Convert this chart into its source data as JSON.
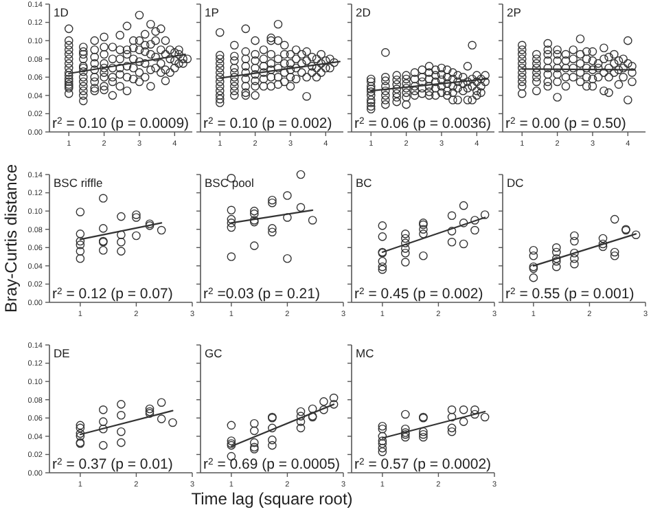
{
  "chart_data": [
    {
      "type": "scatter",
      "title": "1D",
      "ylabel": null,
      "marker": "circle",
      "xlim": [
        0.45,
        4.5
      ],
      "xticks": [
        1,
        2,
        3,
        4
      ],
      "ylim": [
        0,
        0.14
      ],
      "yticks": [
        {
          "value": 0,
          "label": "0.00"
        },
        {
          "value": 0.02,
          "label": "0.02"
        },
        {
          "value": 0.04,
          "label": "0.04"
        },
        {
          "value": 0.06,
          "label": "0.06"
        },
        {
          "value": 0.08,
          "label": "0.08"
        },
        {
          "value": 0.1,
          "label": "0.10"
        },
        {
          "value": 0.12,
          "label": "0.12"
        },
        {
          "value": 0.14,
          "label": "0.14"
        }
      ],
      "annotations": [
        "r$^{2}$ = 0.10 (p = 0.0009)"
      ],
      "series": [
        {
          "type": "scatter",
          "color": "#333333",
          "x": [
            1,
            1,
            1,
            1,
            1,
            1,
            1,
            1,
            1,
            1,
            1,
            1,
            1,
            1,
            1,
            1,
            1.41,
            1.41,
            1.41,
            1.41,
            1.41,
            1.41,
            1.41,
            1.41,
            1.41,
            1.41,
            1.41,
            1.41,
            1.41,
            1.73,
            1.73,
            1.73,
            1.73,
            1.73,
            1.73,
            1.73,
            1.73,
            1.73,
            2,
            2,
            2,
            2,
            2,
            2,
            2,
            2,
            2,
            2.24,
            2.24,
            2.24,
            2.24,
            2.24,
            2.24,
            2.45,
            2.45,
            2.45,
            2.45,
            2.45,
            2.45,
            2.65,
            2.65,
            2.65,
            2.65,
            2.65,
            2.65,
            2.83,
            2.83,
            2.83,
            2.83,
            2.83,
            3,
            3,
            3,
            3,
            3,
            3,
            3.16,
            3.16,
            3.16,
            3.16,
            3.16,
            3.32,
            3.32,
            3.32,
            3.32,
            3.32,
            3.46,
            3.46,
            3.46,
            3.46,
            3.61,
            3.61,
            3.61,
            3.61,
            3.74,
            3.74,
            3.74,
            3.74,
            3.87,
            3.87,
            3.87,
            4,
            4,
            4,
            4.12,
            4.12,
            4.12,
            4.24,
            4.24,
            4.36
          ],
          "values": [
            0.113,
            0.1,
            0.095,
            0.09,
            0.085,
            0.08,
            0.075,
            0.07,
            0.065,
            0.062,
            0.058,
            0.055,
            0.052,
            0.05,
            0.048,
            0.042,
            0.093,
            0.088,
            0.085,
            0.08,
            0.072,
            0.07,
            0.066,
            0.06,
            0.055,
            0.05,
            0.045,
            0.04,
            0.034,
            0.1,
            0.09,
            0.082,
            0.075,
            0.068,
            0.06,
            0.055,
            0.048,
            0.045,
            0.104,
            0.093,
            0.085,
            0.075,
            0.07,
            0.065,
            0.06,
            0.05,
            0.046,
            0.093,
            0.08,
            0.07,
            0.06,
            0.055,
            0.04,
            0.106,
            0.09,
            0.08,
            0.07,
            0.063,
            0.05,
            0.116,
            0.09,
            0.085,
            0.072,
            0.06,
            0.045,
            0.1,
            0.092,
            0.08,
            0.07,
            0.058,
            0.128,
            0.1,
            0.09,
            0.077,
            0.065,
            0.055,
            0.107,
            0.095,
            0.088,
            0.075,
            0.06,
            0.118,
            0.096,
            0.085,
            0.068,
            0.05,
            0.11,
            0.1,
            0.082,
            0.07,
            0.113,
            0.09,
            0.075,
            0.065,
            0.1,
            0.085,
            0.068,
            0.056,
            0.09,
            0.08,
            0.065,
            0.087,
            0.078,
            0.07,
            0.09,
            0.085,
            0.075,
            0.08,
            0.075,
            0.08
          ]
        },
        {
          "type": "line",
          "color": "#333333",
          "x": [
            1,
            4.3
          ],
          "values": [
            0.064,
            0.085
          ],
          "marker": "none"
        }
      ]
    },
    {
      "type": "scatter",
      "title": "1P",
      "marker": "circle",
      "tick_labels": "x",
      "xlim": [
        0.45,
        4.5
      ],
      "xticks": [
        1,
        2,
        3,
        4
      ],
      "ylim": [
        0,
        0.14
      ],
      "yticks": [
        0,
        0.02,
        0.04,
        0.06,
        0.08,
        0.1,
        0.12,
        0.14
      ],
      "annotations": [
        "r$^{2}$ = 0.10 (p = 0.002)"
      ],
      "series": [
        {
          "type": "scatter",
          "color": "#333333",
          "x": [
            1,
            1,
            1,
            1,
            1,
            1,
            1,
            1,
            1,
            1,
            1,
            1,
            1,
            1.41,
            1.41,
            1.41,
            1.41,
            1.41,
            1.41,
            1.41,
            1.41,
            1.41,
            1.41,
            1.73,
            1.73,
            1.73,
            1.73,
            1.73,
            1.73,
            1.73,
            1.73,
            1.73,
            2,
            2,
            2,
            2,
            2,
            2,
            2,
            2,
            2.24,
            2.24,
            2.24,
            2.24,
            2.24,
            2.24,
            2.45,
            2.45,
            2.45,
            2.45,
            2.45,
            2.45,
            2.45,
            2.65,
            2.65,
            2.65,
            2.65,
            2.65,
            2.65,
            2.83,
            2.83,
            2.83,
            2.83,
            2.83,
            3,
            3,
            3,
            3,
            3,
            3.16,
            3.16,
            3.16,
            3.16,
            3.32,
            3.32,
            3.32,
            3.46,
            3.46,
            3.46,
            3.46,
            3.61,
            3.61,
            3.61,
            3.74,
            3.74,
            3.74,
            3.87,
            3.87,
            3.87,
            4,
            4,
            4.12,
            4.12,
            4.24
          ],
          "values": [
            0.109,
            0.084,
            0.08,
            0.075,
            0.07,
            0.065,
            0.06,
            0.055,
            0.05,
            0.045,
            0.04,
            0.036,
            0.032,
            0.095,
            0.083,
            0.078,
            0.07,
            0.065,
            0.06,
            0.055,
            0.05,
            0.045,
            0.04,
            0.113,
            0.088,
            0.08,
            0.072,
            0.065,
            0.058,
            0.05,
            0.043,
            0.04,
            0.1,
            0.085,
            0.078,
            0.07,
            0.063,
            0.056,
            0.05,
            0.04,
            0.09,
            0.08,
            0.072,
            0.065,
            0.058,
            0.05,
            0.103,
            0.1,
            0.085,
            0.075,
            0.068,
            0.06,
            0.05,
            0.118,
            0.1,
            0.08,
            0.07,
            0.06,
            0.052,
            0.095,
            0.085,
            0.075,
            0.065,
            0.055,
            0.085,
            0.075,
            0.068,
            0.06,
            0.05,
            0.09,
            0.08,
            0.07,
            0.058,
            0.085,
            0.075,
            0.065,
            0.088,
            0.078,
            0.06,
            0.039,
            0.082,
            0.072,
            0.065,
            0.08,
            0.07,
            0.06,
            0.085,
            0.075,
            0.065,
            0.078,
            0.07,
            0.08,
            0.07,
            0.076
          ]
        },
        {
          "type": "line",
          "color": "#333333",
          "x": [
            1,
            4.4
          ],
          "values": [
            0.059,
            0.077
          ],
          "marker": "none"
        }
      ]
    },
    {
      "type": "scatter",
      "title": "2D",
      "marker": "circle",
      "tick_labels": "x",
      "xlim": [
        0.45,
        4.5
      ],
      "xticks": [
        1,
        2,
        3,
        4
      ],
      "ylim": [
        0,
        0.14
      ],
      "yticks": [
        0,
        0.02,
        0.04,
        0.06,
        0.08,
        0.1,
        0.12,
        0.14
      ],
      "annotations": [
        "r$^{2}$ = 0.06 (p = 0.0036)"
      ],
      "series": [
        {
          "type": "scatter",
          "color": "#333333",
          "x": [
            1,
            1,
            1,
            1,
            1,
            1,
            1,
            1,
            1,
            1,
            1.41,
            1.41,
            1.41,
            1.41,
            1.41,
            1.41,
            1.41,
            1.41,
            1.73,
            1.73,
            1.73,
            1.73,
            1.73,
            1.73,
            1.73,
            2,
            2,
            2,
            2,
            2,
            2,
            2,
            2.24,
            2.24,
            2.24,
            2.24,
            2.24,
            2.45,
            2.45,
            2.45,
            2.45,
            2.45,
            2.65,
            2.65,
            2.65,
            2.65,
            2.65,
            2.65,
            2.83,
            2.83,
            2.83,
            2.83,
            2.83,
            3,
            3,
            3,
            3,
            3,
            3.16,
            3.16,
            3.16,
            3.16,
            3.16,
            3.32,
            3.32,
            3.32,
            3.32,
            3.32,
            3.46,
            3.46,
            3.46,
            3.46,
            3.61,
            3.61,
            3.61,
            3.74,
            3.74,
            3.74,
            3.74,
            3.87,
            3.87,
            3.87,
            3.87,
            4,
            4,
            4,
            4,
            4.12,
            4.12,
            4.12,
            4.24,
            4.24
          ],
          "values": [
            0.058,
            0.055,
            0.05,
            0.047,
            0.044,
            0.04,
            0.035,
            0.032,
            0.028,
            0.025,
            0.087,
            0.06,
            0.056,
            0.05,
            0.045,
            0.04,
            0.035,
            0.03,
            0.062,
            0.057,
            0.052,
            0.047,
            0.042,
            0.038,
            0.033,
            0.062,
            0.058,
            0.053,
            0.048,
            0.043,
            0.038,
            0.03,
            0.065,
            0.058,
            0.05,
            0.045,
            0.04,
            0.068,
            0.06,
            0.055,
            0.048,
            0.042,
            0.072,
            0.065,
            0.058,
            0.05,
            0.044,
            0.04,
            0.068,
            0.062,
            0.055,
            0.048,
            0.04,
            0.07,
            0.063,
            0.057,
            0.05,
            0.043,
            0.068,
            0.06,
            0.053,
            0.045,
            0.04,
            0.065,
            0.058,
            0.05,
            0.043,
            0.035,
            0.062,
            0.055,
            0.048,
            0.035,
            0.06,
            0.053,
            0.045,
            0.072,
            0.055,
            0.048,
            0.035,
            0.095,
            0.058,
            0.05,
            0.035,
            0.062,
            0.055,
            0.045,
            0.04,
            0.058,
            0.05,
            0.043,
            0.062,
            0.055
          ]
        },
        {
          "type": "line",
          "color": "#333333",
          "x": [
            1,
            4.3
          ],
          "values": [
            0.045,
            0.058
          ],
          "marker": "none"
        }
      ]
    },
    {
      "type": "scatter",
      "title": "2P",
      "marker": "circle",
      "tick_labels": "x",
      "xlim": [
        0.45,
        4.5
      ],
      "xticks": [
        1,
        2,
        3,
        4
      ],
      "ylim": [
        0,
        0.14
      ],
      "yticks": [
        0,
        0.02,
        0.04,
        0.06,
        0.08,
        0.1,
        0.12,
        0.14
      ],
      "annotations": [
        "r$^{2}$ = 0.00 (p = 0.50)"
      ],
      "series": [
        {
          "type": "scatter",
          "color": "#333333",
          "x": [
            1,
            1,
            1,
            1,
            1,
            1,
            1,
            1,
            1,
            1,
            1,
            1.41,
            1.41,
            1.41,
            1.41,
            1.41,
            1.41,
            1.41,
            1.41,
            1.73,
            1.73,
            1.73,
            1.73,
            1.73,
            1.73,
            1.73,
            1.73,
            2,
            2,
            2,
            2,
            2,
            2,
            2,
            2.24,
            2.24,
            2.24,
            2.24,
            2.24,
            2.45,
            2.45,
            2.45,
            2.45,
            2.65,
            2.65,
            2.65,
            2.65,
            2.65,
            2.83,
            2.83,
            2.83,
            2.83,
            2.83,
            3,
            3,
            3,
            3,
            3,
            3.16,
            3.16,
            3.16,
            3.32,
            3.32,
            3.32,
            3.32,
            3.46,
            3.46,
            3.46,
            3.46,
            3.61,
            3.61,
            3.61,
            3.74,
            3.74,
            3.74,
            3.87,
            3.87,
            3.87,
            4,
            4,
            4,
            4.12,
            4.12,
            4.12
          ],
          "values": [
            0.095,
            0.09,
            0.085,
            0.08,
            0.075,
            0.07,
            0.065,
            0.06,
            0.055,
            0.05,
            0.042,
            0.085,
            0.08,
            0.075,
            0.07,
            0.065,
            0.06,
            0.055,
            0.045,
            0.097,
            0.09,
            0.085,
            0.078,
            0.07,
            0.063,
            0.055,
            0.05,
            0.09,
            0.085,
            0.078,
            0.07,
            0.063,
            0.055,
            0.038,
            0.085,
            0.078,
            0.07,
            0.06,
            0.05,
            0.09,
            0.08,
            0.07,
            0.06,
            0.102,
            0.085,
            0.075,
            0.065,
            0.055,
            0.088,
            0.08,
            0.07,
            0.06,
            0.05,
            0.088,
            0.078,
            0.068,
            0.058,
            0.05,
            0.075,
            0.07,
            0.06,
            0.092,
            0.08,
            0.065,
            0.045,
            0.082,
            0.07,
            0.06,
            0.043,
            0.085,
            0.075,
            0.065,
            0.078,
            0.068,
            0.052,
            0.08,
            0.07,
            0.06,
            0.1,
            0.075,
            0.035,
            0.072,
            0.065,
            0.055
          ]
        },
        {
          "type": "line",
          "color": "#333333",
          "x": [
            1,
            4.2
          ],
          "values": [
            0.069,
            0.068
          ],
          "marker": "none"
        }
      ]
    },
    {
      "type": "scatter",
      "title": "BSC riffle",
      "ylabel": "Bray-Curtis distance",
      "marker": "circle",
      "xlim": [
        0.45,
        3
      ],
      "xticks": [
        1,
        2,
        3
      ],
      "ylim": [
        0,
        0.14
      ],
      "yticks": [
        {
          "value": 0,
          "label": "0.00"
        },
        {
          "value": 0.02,
          "label": "0.02"
        },
        {
          "value": 0.04,
          "label": "0.04"
        },
        {
          "value": 0.06,
          "label": "0.06"
        },
        {
          "value": 0.08,
          "label": "0.08"
        },
        {
          "value": 0.1,
          "label": "0.10"
        },
        {
          "value": 0.12,
          "label": "0.12"
        },
        {
          "value": 0.14,
          "label": "0.14"
        }
      ],
      "annotations": [
        "r$^{2}$ = 0.12 (p = 0.07)"
      ],
      "series": [
        {
          "type": "scatter",
          "color": "#333333",
          "x": [
            1,
            1,
            1,
            1,
            1,
            1,
            1.41,
            1.41,
            1.41,
            1.41,
            1.41,
            1.73,
            1.73,
            1.73,
            1.73,
            2,
            2,
            2,
            2.24,
            2.24,
            2.45
          ],
          "values": [
            0.099,
            0.075,
            0.067,
            0.063,
            0.056,
            0.048,
            0.114,
            0.081,
            0.067,
            0.066,
            0.057,
            0.094,
            0.074,
            0.066,
            0.056,
            0.096,
            0.093,
            0.073,
            0.086,
            0.084,
            0.079
          ]
        },
        {
          "type": "line",
          "color": "#333333",
          "x": [
            1,
            2.45
          ],
          "values": [
            0.069,
            0.087
          ],
          "marker": "none"
        }
      ]
    },
    {
      "type": "scatter",
      "title": "BSC pool",
      "marker": "circle",
      "tick_labels": "x",
      "xlim": [
        0.45,
        3
      ],
      "xticks": [
        1,
        2,
        3
      ],
      "ylim": [
        0,
        0.14
      ],
      "yticks": [
        0,
        0.02,
        0.04,
        0.06,
        0.08,
        0.1,
        0.12,
        0.14
      ],
      "annotations": [
        "r$^{2}$ =0.03 (p = 0.21)"
      ],
      "series": [
        {
          "type": "scatter",
          "color": "#333333",
          "x": [
            1,
            1,
            1,
            1,
            1,
            1,
            1.41,
            1.41,
            1.41,
            1.41,
            1.41,
            1.73,
            1.73,
            1.73,
            1.73,
            2,
            2,
            2,
            2.24,
            2.24,
            2.45
          ],
          "values": [
            0.136,
            0.101,
            0.091,
            0.087,
            0.082,
            0.05,
            0.1,
            0.097,
            0.09,
            0.088,
            0.062,
            0.112,
            0.109,
            0.081,
            0.077,
            0.117,
            0.093,
            0.048,
            0.14,
            0.104,
            0.09
          ]
        },
        {
          "type": "line",
          "color": "#333333",
          "x": [
            1,
            2.45
          ],
          "values": [
            0.087,
            0.101
          ],
          "marker": "none"
        }
      ]
    },
    {
      "type": "scatter",
      "title": "BC",
      "marker": "circle",
      "tick_labels": "x",
      "xlim": [
        0.45,
        3
      ],
      "xticks": [
        1,
        2,
        3
      ],
      "ylim": [
        0,
        0.14
      ],
      "yticks": [
        0,
        0.02,
        0.04,
        0.06,
        0.08,
        0.1,
        0.12,
        0.14
      ],
      "annotations": [
        "r$^{2}$ = 0.45 (p = 0.002)"
      ],
      "series": [
        {
          "type": "scatter",
          "color": "#333333",
          "x": [
            1,
            1,
            1,
            1,
            1,
            1,
            1,
            1.41,
            1.41,
            1.41,
            1.41,
            1.41,
            1.41,
            1.73,
            1.73,
            1.73,
            1.73,
            1.73,
            2.24,
            2.24,
            2.24,
            2.45,
            2.45,
            2.45,
            2.65,
            2.65,
            2.83
          ],
          "values": [
            0.084,
            0.072,
            0.055,
            0.054,
            0.045,
            0.039,
            0.036,
            0.075,
            0.07,
            0.065,
            0.059,
            0.054,
            0.044,
            0.087,
            0.085,
            0.08,
            0.075,
            0.051,
            0.095,
            0.078,
            0.066,
            0.106,
            0.087,
            0.064,
            0.09,
            0.079,
            0.096
          ]
        },
        {
          "type": "line",
          "color": "#333333",
          "x": [
            1,
            2.83
          ],
          "values": [
            0.055,
            0.093
          ],
          "marker": "none"
        }
      ]
    },
    {
      "type": "scatter",
      "title": "DC",
      "marker": "circle",
      "tick_labels": "x",
      "xlim": [
        0.45,
        3
      ],
      "xticks": [
        1,
        2,
        3
      ],
      "ylim": [
        0,
        0.14
      ],
      "yticks": [
        0,
        0.02,
        0.04,
        0.06,
        0.08,
        0.1,
        0.12,
        0.14
      ],
      "annotations": [
        "r$^{2}$ = 0.55 (p = 0.001)"
      ],
      "series": [
        {
          "type": "scatter",
          "color": "#333333",
          "x": [
            1,
            1,
            1,
            1,
            1,
            1.41,
            1.41,
            1.41,
            1.41,
            1.41,
            1.73,
            1.73,
            1.73,
            1.73,
            1.73,
            2.24,
            2.24,
            2.24,
            2.45,
            2.45,
            2.45,
            2.65,
            2.65,
            2.83
          ],
          "values": [
            0.057,
            0.051,
            0.039,
            0.037,
            0.027,
            0.06,
            0.055,
            0.048,
            0.045,
            0.039,
            0.073,
            0.067,
            0.054,
            0.048,
            0.042,
            0.07,
            0.064,
            0.061,
            0.091,
            0.055,
            0.051,
            0.08,
            0.079,
            0.074
          ]
        },
        {
          "type": "line",
          "color": "#333333",
          "x": [
            1,
            2.83
          ],
          "values": [
            0.04,
            0.075
          ],
          "marker": "none"
        }
      ]
    },
    {
      "type": "scatter",
      "title": "DE",
      "marker": "circle",
      "xlim": [
        0.45,
        3
      ],
      "xticks": [
        1,
        2,
        3
      ],
      "ylim": [
        0,
        0.14
      ],
      "yticks": [
        {
          "value": 0,
          "label": "0.00"
        },
        {
          "value": 0.02,
          "label": "0.02"
        },
        {
          "value": 0.04,
          "label": "0.04"
        },
        {
          "value": 0.06,
          "label": "0.06"
        },
        {
          "value": 0.08,
          "label": "0.08"
        },
        {
          "value": 0.1,
          "label": "0.10"
        },
        {
          "value": 0.12,
          "label": "0.12"
        },
        {
          "value": 0.14,
          "label": "0.14"
        }
      ],
      "annotations": [
        "r$^{2}$ = 0.37 (p = 0.01)"
      ],
      "series": [
        {
          "type": "scatter",
          "color": "#333333",
          "x": [
            1,
            1,
            1,
            1,
            1,
            1,
            1.41,
            1.41,
            1.41,
            1.41,
            1.73,
            1.73,
            1.73,
            1.73,
            2.24,
            2.24,
            2.24,
            2.45,
            2.45,
            2.65
          ],
          "values": [
            0.052,
            0.049,
            0.043,
            0.04,
            0.033,
            0.032,
            0.069,
            0.056,
            0.048,
            0.03,
            0.075,
            0.063,
            0.045,
            0.033,
            0.07,
            0.067,
            0.065,
            0.077,
            0.059,
            0.055
          ]
        },
        {
          "type": "line",
          "color": "#333333",
          "x": [
            1,
            2.65
          ],
          "values": [
            0.042,
            0.068
          ],
          "marker": "none"
        }
      ]
    },
    {
      "type": "scatter",
      "title": "GC",
      "xlabel": "Time lag (square root)",
      "marker": "circle",
      "tick_labels": "x",
      "xlim": [
        0.45,
        3
      ],
      "xticks": [
        1,
        2,
        3
      ],
      "ylim": [
        0,
        0.14
      ],
      "yticks": [
        0,
        0.02,
        0.04,
        0.06,
        0.08,
        0.1,
        0.12,
        0.14
      ],
      "annotations": [
        "r$^{2}$ = 0.69 (p = 0.0005)"
      ],
      "series": [
        {
          "type": "scatter",
          "color": "#333333",
          "x": [
            1,
            1,
            1,
            1,
            1,
            1.41,
            1.41,
            1.41,
            1.41,
            1.41,
            1.73,
            1.73,
            1.73,
            1.73,
            1.73,
            2.24,
            2.24,
            2.24,
            2.24,
            2.45,
            2.45,
            2.45,
            2.65,
            2.65,
            2.83,
            2.83
          ],
          "values": [
            0.052,
            0.035,
            0.032,
            0.03,
            0.018,
            0.054,
            0.046,
            0.033,
            0.028,
            0.026,
            0.061,
            0.06,
            0.049,
            0.036,
            0.03,
            0.067,
            0.062,
            0.056,
            0.049,
            0.07,
            0.062,
            0.061,
            0.078,
            0.069,
            0.082,
            0.075
          ]
        },
        {
          "type": "line",
          "color": "#333333",
          "x": [
            1,
            2.83
          ],
          "values": [
            0.029,
            0.075
          ],
          "marker": "none"
        }
      ]
    },
    {
      "type": "scatter",
      "title": "MC",
      "marker": "circle",
      "tick_labels": "x",
      "xlim": [
        0.45,
        3
      ],
      "xticks": [
        1,
        2,
        3
      ],
      "ylim": [
        0,
        0.14
      ],
      "yticks": [
        0,
        0.02,
        0.04,
        0.06,
        0.08,
        0.1,
        0.12,
        0.14
      ],
      "annotations": [
        "r$^{2}$ = 0.57 (p = 0.0002)"
      ],
      "series": [
        {
          "type": "scatter",
          "color": "#333333",
          "x": [
            1,
            1,
            1,
            1,
            1,
            1,
            1,
            1.41,
            1.41,
            1.41,
            1.41,
            1.41,
            1.73,
            1.73,
            1.73,
            1.73,
            1.73,
            2.24,
            2.24,
            2.24,
            2.24,
            2.45,
            2.45,
            2.65,
            2.65,
            2.83
          ],
          "values": [
            0.051,
            0.048,
            0.04,
            0.035,
            0.032,
            0.027,
            0.023,
            0.064,
            0.048,
            0.044,
            0.042,
            0.039,
            0.061,
            0.06,
            0.045,
            0.042,
            0.039,
            0.069,
            0.061,
            0.049,
            0.045,
            0.069,
            0.056,
            0.069,
            0.064,
            0.061
          ]
        },
        {
          "type": "line",
          "color": "#333333",
          "x": [
            1,
            2.83
          ],
          "values": [
            0.038,
            0.067
          ],
          "marker": "none"
        }
      ]
    }
  ]
}
